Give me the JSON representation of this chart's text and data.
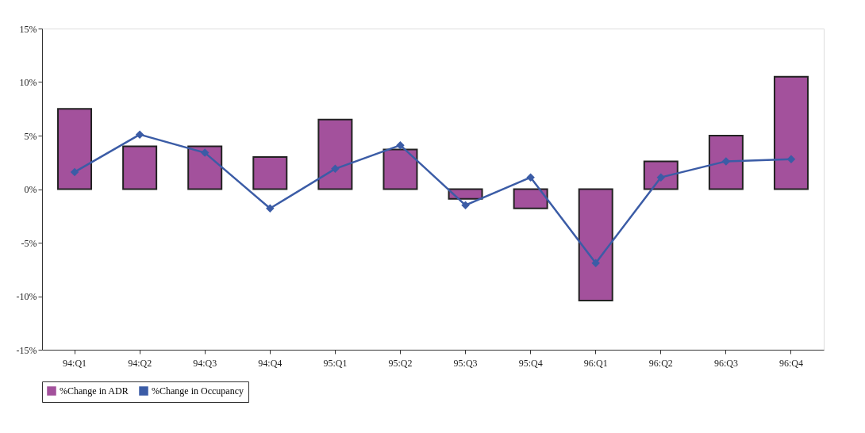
{
  "chart_data": {
    "type": "bar",
    "categories": [
      "94:Q1",
      "94:Q2",
      "94:Q3",
      "94:Q4",
      "95:Q1",
      "95:Q2",
      "95:Q3",
      "95:Q4",
      "96:Q1",
      "96:Q2",
      "96:Q3",
      "96:Q4"
    ],
    "series": [
      {
        "name": "%Change in ADR",
        "color": "#a3519c",
        "values": [
          7.5,
          4.0,
          4.0,
          3.0,
          6.5,
          3.7,
          -0.9,
          -1.8,
          -10.4,
          2.6,
          5.0,
          10.5
        ]
      },
      {
        "name": "%Change in Occupancy",
        "type": "line",
        "color": "#3b5ca6",
        "values": [
          1.6,
          5.1,
          3.4,
          -1.8,
          1.9,
          4.1,
          -1.5,
          1.1,
          -6.9,
          1.1,
          2.6,
          2.8
        ]
      }
    ],
    "ylim": [
      -15,
      15
    ],
    "yticks": [
      {
        "value": -15,
        "label": "-15%"
      },
      {
        "value": -10,
        "label": "-10%"
      },
      {
        "value": -5,
        "label": "-5%"
      },
      {
        "value": 0,
        "label": "0%"
      },
      {
        "value": 5,
        "label": "5%"
      },
      {
        "value": 10,
        "label": "10%"
      },
      {
        "value": 15,
        "label": "15%"
      }
    ],
    "grid": false,
    "legend": "bottom",
    "marker": "diamond",
    "line_style": "solid"
  }
}
